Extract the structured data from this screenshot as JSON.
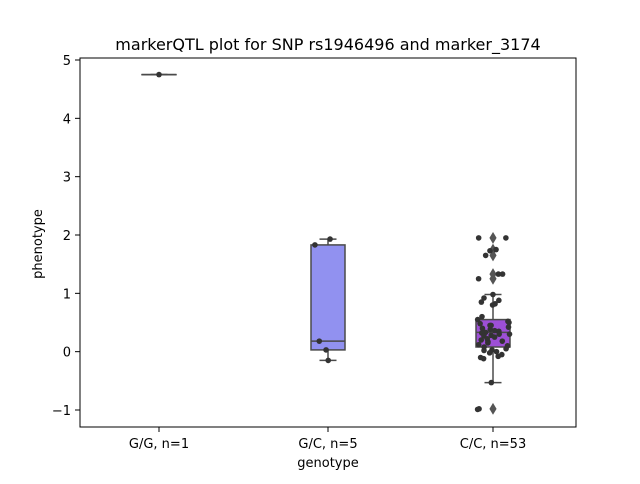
{
  "chart_data": {
    "type": "box",
    "title": "markerQTL plot for SNP rs1946496 and marker_3174",
    "xlabel": "genotype",
    "ylabel": "phenotype",
    "ylim": [
      -1.3,
      5.0
    ],
    "yticks": [
      -1,
      0,
      1,
      2,
      3,
      4,
      5
    ],
    "grid": false,
    "categories": [
      "G/G, n=1",
      "G/C, n=5",
      "C/C, n=53"
    ],
    "boxes": [
      {
        "category": "G/G, n=1",
        "color": "#5a9bd4",
        "q1": 4.75,
        "median": 4.75,
        "q3": 4.75,
        "whisker_low": 4.75,
        "whisker_high": 4.75,
        "outliers": []
      },
      {
        "category": "G/C, n=5",
        "color": "#9191f0",
        "q1": 0.03,
        "median": 0.18,
        "q3": 1.83,
        "whisker_low": -0.15,
        "whisker_high": 1.93,
        "outliers": []
      },
      {
        "category": "C/C, n=53",
        "color": "#9d4fd6",
        "q1": 0.08,
        "median": 0.33,
        "q3": 0.55,
        "whisker_low": -0.53,
        "whisker_high": 0.98,
        "outliers": [
          1.95,
          1.75,
          1.65,
          1.33,
          1.25,
          -0.98
        ]
      }
    ],
    "points": [
      {
        "category": "G/G, n=1",
        "values": [
          4.75
        ]
      },
      {
        "category": "G/C, n=5",
        "values": [
          1.93,
          1.83,
          0.18,
          0.03,
          -0.15
        ]
      },
      {
        "category": "C/C, n=53",
        "values": [
          1.95,
          1.95,
          1.75,
          1.73,
          1.65,
          1.33,
          1.33,
          1.25,
          0.98,
          0.92,
          0.88,
          0.85,
          0.82,
          0.8,
          0.6,
          0.55,
          0.52,
          0.5,
          0.48,
          0.45,
          0.42,
          0.4,
          0.38,
          0.36,
          0.35,
          0.33,
          0.32,
          0.3,
          0.28,
          0.27,
          0.25,
          0.22,
          0.2,
          0.18,
          0.17,
          0.15,
          0.12,
          0.1,
          0.08,
          0.05,
          0.03,
          0.02,
          0.0,
          -0.02,
          -0.05,
          -0.08,
          -0.1,
          -0.12,
          -0.53,
          -0.98,
          -0.99,
          0.45,
          0.3
        ]
      }
    ]
  }
}
